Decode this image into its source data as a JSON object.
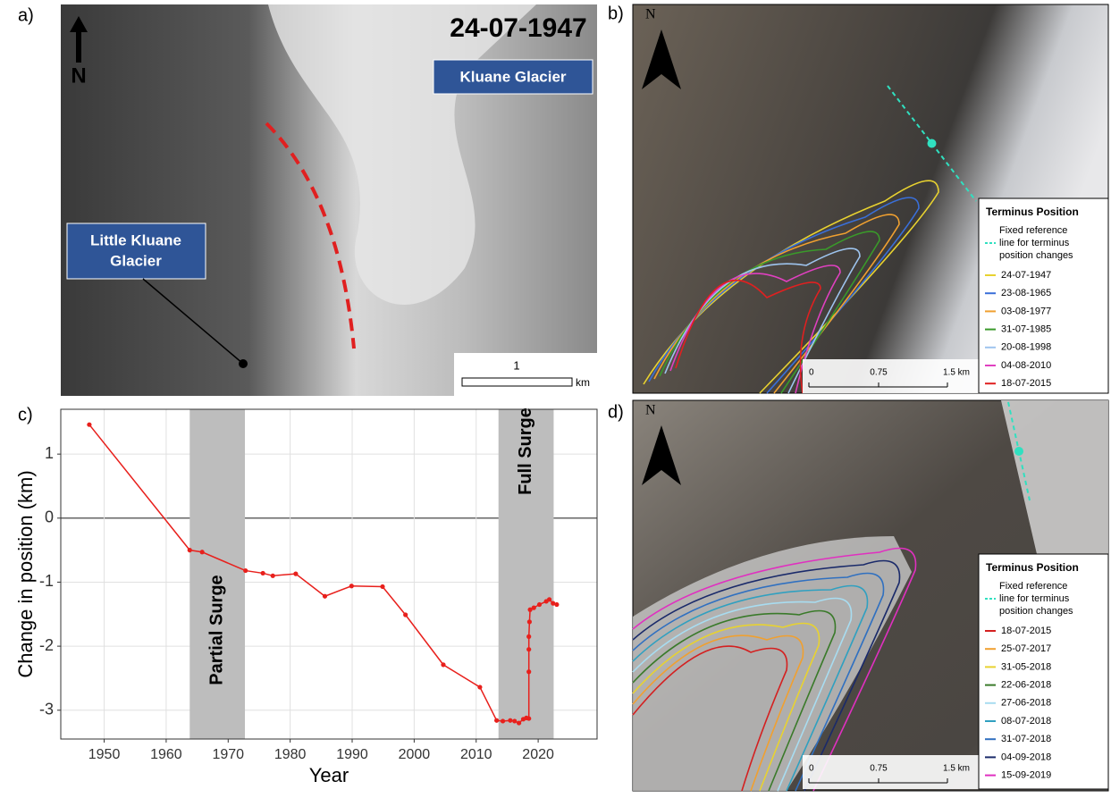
{
  "panel_a": {
    "label": "a)",
    "date": "24-07-1947",
    "north": "N",
    "kluane": "Kluane Glacier",
    "little_kluane": [
      "Little Kluane",
      "Glacier"
    ],
    "scale_label": "1",
    "scale_unit": "km"
  },
  "panel_b": {
    "label": "b)",
    "north": "N",
    "legend_title": "Terminus Position",
    "reference_line": [
      "Fixed reference",
      "line for terminus",
      "position changes"
    ],
    "entries": [
      {
        "name": "24-07-1947",
        "color": "#e8d230"
      },
      {
        "name": "23-08-1965",
        "color": "#3a6fd8"
      },
      {
        "name": "03-08-1977",
        "color": "#f0a030"
      },
      {
        "name": "31-07-1985",
        "color": "#3a9a2a"
      },
      {
        "name": "20-08-1998",
        "color": "#9ec4ee"
      },
      {
        "name": "04-08-2010",
        "color": "#e040c0"
      },
      {
        "name": "18-07-2015",
        "color": "#e02020"
      }
    ],
    "scale_labels": [
      "0",
      "0.75",
      "1.5 km"
    ]
  },
  "panel_d": {
    "label": "d)",
    "north": "N",
    "legend_title": "Terminus Position",
    "reference_line": [
      "Fixed reference",
      "line for terminus",
      "position changes"
    ],
    "entries": [
      {
        "name": "18-07-2015",
        "color": "#d42020"
      },
      {
        "name": "25-07-2017",
        "color": "#f0a030"
      },
      {
        "name": "31-05-2018",
        "color": "#e8d230"
      },
      {
        "name": "22-06-2018",
        "color": "#3a7a2a"
      },
      {
        "name": "27-06-2018",
        "color": "#a8dcf0"
      },
      {
        "name": "08-07-2018",
        "color": "#30a0c0"
      },
      {
        "name": "31-07-2018",
        "color": "#3070c0"
      },
      {
        "name": "04-09-2018",
        "color": "#1a2a6a"
      },
      {
        "name": "15-09-2019",
        "color": "#e030c0"
      }
    ],
    "scale_labels": [
      "0",
      "0.75",
      "1.5 km"
    ]
  },
  "chart_data": {
    "type": "line",
    "label": "c)",
    "xlabel": "Year",
    "ylabel": "Change in position (km)",
    "color": "#e8201c",
    "grid": true,
    "x": [
      1947.6,
      1963.8,
      1965.8,
      1972.8,
      1975.6,
      1977.2,
      1980.9,
      1985.6,
      1989.9,
      1994.9,
      1998.6,
      2004.7,
      2010.6,
      2013.3,
      2014.3,
      2015.5,
      2016.2,
      2016.9,
      2017.6,
      2018.1,
      2018.5,
      2018.5,
      2018.5,
      2018.5,
      2018.6,
      2018.7,
      2019.3,
      2020.2,
      2021.3,
      2021.8,
      2022.4,
      2023.0
    ],
    "values": [
      1.46,
      -0.5,
      -0.53,
      -0.82,
      -0.86,
      -0.9,
      -0.87,
      -1.22,
      -1.06,
      -1.07,
      -1.51,
      -2.29,
      -2.64,
      -3.16,
      -3.17,
      -3.16,
      -3.17,
      -3.2,
      -3.14,
      -3.12,
      -3.13,
      -2.4,
      -2.05,
      -1.85,
      -1.62,
      -1.43,
      -1.4,
      -1.35,
      -1.3,
      -1.27,
      -1.33,
      -1.35
    ],
    "xlim": [
      1943,
      2029.5
    ],
    "ylim": [
      -3.45,
      1.7
    ],
    "xticks": [
      1950,
      1960,
      1970,
      1980,
      1990,
      2000,
      2010,
      2020
    ],
    "yticks": [
      -3,
      -2,
      -1,
      0,
      1
    ],
    "shaded": [
      {
        "name": "Partial Surge",
        "range": [
          1963.8,
          1972.7
        ]
      },
      {
        "name": "Full Surge",
        "range": [
          2013.6,
          2022.5
        ]
      }
    ]
  }
}
